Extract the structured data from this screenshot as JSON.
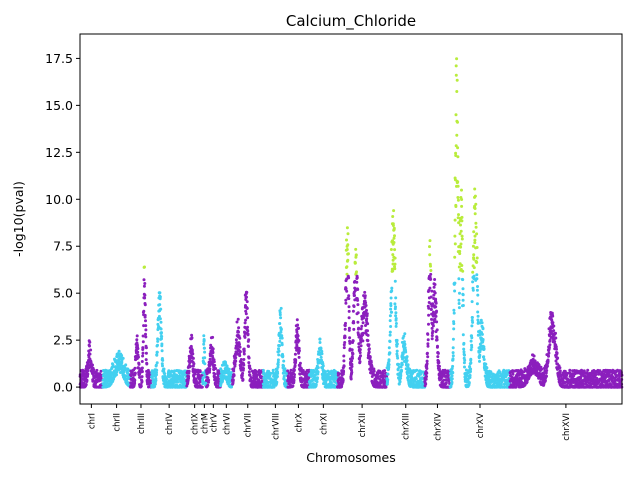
{
  "chart_data": {
    "type": "scatter",
    "title": "Calcium_Chloride",
    "xlabel": "Chromosomes",
    "ylabel": "-log10(pval)",
    "ylim": [
      -0.9,
      18.8
    ],
    "yticks": [
      0.0,
      2.5,
      5.0,
      7.5,
      10.0,
      12.5,
      15.0,
      17.5
    ],
    "ytick_labels": [
      "0.0",
      "2.5",
      "5.0",
      "7.5",
      "10.0",
      "12.5",
      "15.0",
      "17.5"
    ],
    "xlim": [
      0,
      1000
    ],
    "significance_threshold": 6.0,
    "colors": {
      "odd": "#8b1fbd",
      "even": "#43d0f0",
      "significant": "#b9ec3c"
    },
    "chromosomes": [
      {
        "name": "chrI",
        "start": 0,
        "end": 42,
        "peaks": [
          [
            18,
            1.8,
            3
          ]
        ]
      },
      {
        "name": "chrII",
        "start": 42,
        "end": 93,
        "peaks": [
          [
            30,
            1.2,
            8
          ]
        ]
      },
      {
        "name": "chrIII",
        "start": 93,
        "end": 132,
        "peaks": [
          [
            12,
            2.6,
            2
          ],
          [
            26,
            6.0,
            2
          ]
        ]
      },
      {
        "name": "chrIV",
        "start": 132,
        "end": 197,
        "peaks": [
          [
            15,
            5.1,
            3
          ]
        ]
      },
      {
        "name": "chrIX",
        "start": 197,
        "end": 226,
        "peaks": [
          [
            8,
            2.2,
            3
          ]
        ]
      },
      {
        "name": "chrM",
        "start": 226,
        "end": 233,
        "peaks": [
          [
            3,
            2.8,
            1
          ]
        ]
      },
      {
        "name": "chrV",
        "start": 233,
        "end": 259,
        "peaks": [
          [
            10,
            2.2,
            3
          ]
        ]
      },
      {
        "name": "chrVI",
        "start": 259,
        "end": 281,
        "peaks": [
          [
            8,
            0.7,
            4
          ]
        ]
      },
      {
        "name": "chrVII",
        "start": 281,
        "end": 338,
        "peaks": [
          [
            10,
            3.0,
            4
          ],
          [
            26,
            5.2,
            3
          ]
        ]
      },
      {
        "name": "chrVIII",
        "start": 338,
        "end": 383,
        "peaks": [
          [
            32,
            3.9,
            3
          ]
        ]
      },
      {
        "name": "chrX",
        "start": 383,
        "end": 423,
        "peaks": [
          [
            18,
            3.1,
            3
          ]
        ]
      },
      {
        "name": "chrXI",
        "start": 423,
        "end": 475,
        "peaks": [
          [
            20,
            2.2,
            3
          ]
        ]
      },
      {
        "name": "chrXII",
        "start": 475,
        "end": 566,
        "peaks": [
          [
            18,
            8.6,
            3
          ],
          [
            34,
            6.9,
            4
          ],
          [
            50,
            4.8,
            6
          ]
        ]
      },
      {
        "name": "chrXIII",
        "start": 566,
        "end": 636,
        "peaks": [
          [
            12,
            9.6,
            4
          ],
          [
            32,
            2.4,
            4
          ]
        ]
      },
      {
        "name": "chrXIV",
        "start": 636,
        "end": 683,
        "peaks": [
          [
            10,
            7.7,
            3
          ],
          [
            18,
            5.4,
            4
          ]
        ]
      },
      {
        "name": "chrXV",
        "start": 683,
        "end": 793,
        "peaks": [
          [
            12,
            17.8,
            3
          ],
          [
            20,
            10.8,
            3
          ],
          [
            46,
            10.3,
            4
          ],
          [
            58,
            3.2,
            4
          ]
        ]
      },
      {
        "name": "chrXVI",
        "start": 793,
        "end": 1000,
        "peaks": [
          [
            44,
            1.1,
            8
          ],
          [
            78,
            3.8,
            6
          ]
        ]
      }
    ]
  }
}
